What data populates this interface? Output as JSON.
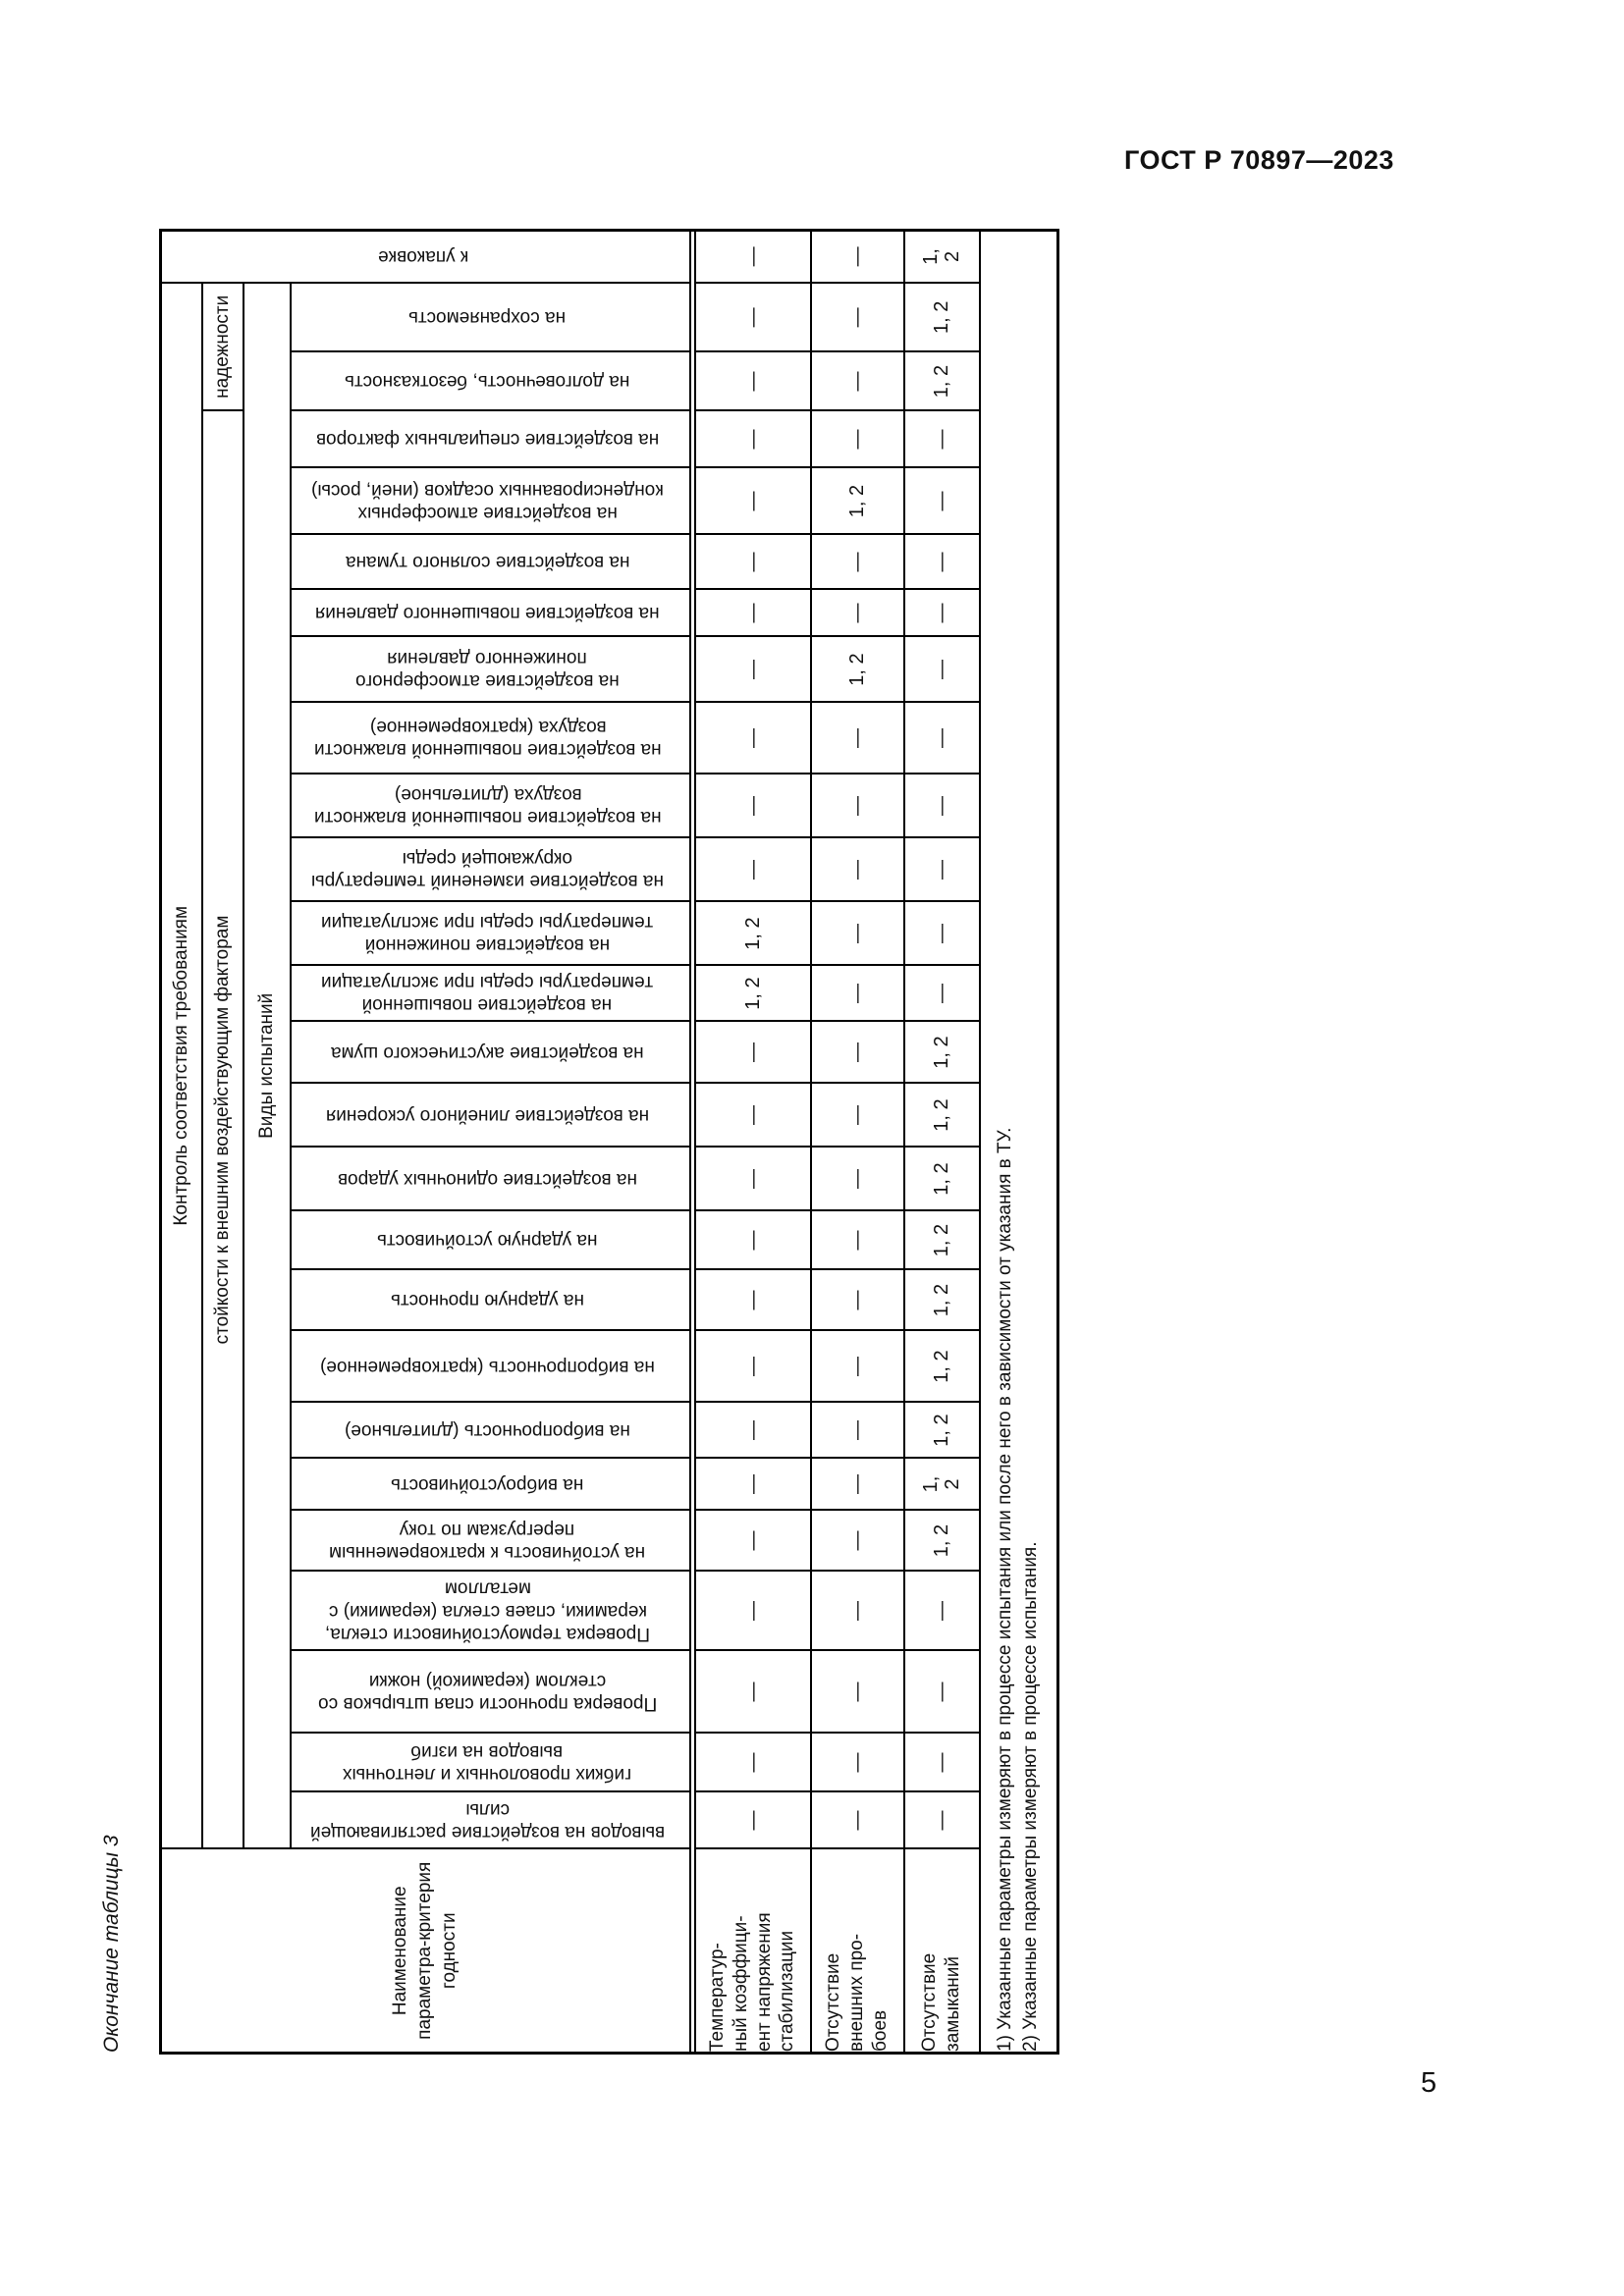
{
  "page": {
    "doc_code": "ГОСТ Р 70897—2023",
    "page_number": "5",
    "table_caption": "Окончание таблицы 3"
  },
  "table": {
    "corner_header": "Наименование\nпараметра-критерия\nгодности",
    "groups": {
      "control": "Контроль соответствия требованиям",
      "stability": "стойкости к внешним воздействующим факторам",
      "reliability": "надежности",
      "test_kinds": "Виды испытаний"
    },
    "packaging_column": {
      "label": "к упаковке",
      "width": 54,
      "values": [
        "—",
        "—",
        "1,\n2"
      ]
    },
    "columns": [
      {
        "label": "выводов на воздействие растягивающей\nсилы",
        "width": 58,
        "values": [
          "—",
          "—",
          "—"
        ]
      },
      {
        "label": "гибких проволочных и ленточных\nвыводов на изгиб",
        "width": 60,
        "values": [
          "—",
          "—",
          "—"
        ]
      },
      {
        "label": "Проверка прочности спая штырьков со\nстеклом (керамикой) ножки",
        "width": 84,
        "values": [
          "—",
          "—",
          "—"
        ]
      },
      {
        "label": "Проверка термоустойчивости стекла,\nкерамики, спаев стекла (керамики) с\nметаллом",
        "width": 81,
        "values": [
          "—",
          "—",
          "—"
        ]
      },
      {
        "label": "на устойчивость к кратковременным\nперегрузкам по току",
        "width": 62,
        "values": [
          "—",
          "—",
          "1, 2"
        ]
      },
      {
        "label": "на виброустойчивость",
        "width": 53,
        "values": [
          "—",
          "—",
          "1,\n2"
        ]
      },
      {
        "label": "на вибропрочность (длительное)",
        "width": 57,
        "values": [
          "—",
          "—",
          "1, 2"
        ]
      },
      {
        "label": "на вибропрочность (кратковременное)",
        "width": 73,
        "values": [
          "—",
          "—",
          "1, 2"
        ]
      },
      {
        "label": "на ударную прочность",
        "width": 62,
        "values": [
          "—",
          "—",
          "1, 2"
        ]
      },
      {
        "label": "на ударную устойчивость",
        "width": 60,
        "values": [
          "—",
          "—",
          "1, 2"
        ]
      },
      {
        "label": "на воздействие одиночных ударов",
        "width": 65,
        "values": [
          "—",
          "—",
          "1, 2"
        ]
      },
      {
        "label": "на воздействие линейного ускорения",
        "width": 65,
        "values": [
          "—",
          "—",
          "1, 2"
        ]
      },
      {
        "label": "на воздействие акустического шума",
        "width": 63,
        "values": [
          "—",
          "—",
          "1, 2"
        ]
      },
      {
        "label": "на воздействие повышенной\nтемпературы среды при эксплуатации",
        "width": 57,
        "values": [
          "1, 2",
          "—",
          "—"
        ]
      },
      {
        "label": "на воздействие пониженной\nтемпературы среды при эксплуатации",
        "width": 65,
        "values": [
          "1, 2",
          "—",
          "—"
        ]
      },
      {
        "label": "на воздействие изменений температуры\nокружающей среды",
        "width": 65,
        "values": [
          "—",
          "—",
          "—"
        ]
      },
      {
        "label": "на воздействие повышенной влажности\nвоздуха (длительное)",
        "width": 65,
        "values": [
          "—",
          "—",
          "—"
        ]
      },
      {
        "label": "на воздействие повышенной влажности\nвоздуха (кратковременное)",
        "width": 73,
        "values": [
          "—",
          "—",
          "—"
        ]
      },
      {
        "label": "на воздействие атмосферного\nпониженного давления",
        "width": 67,
        "values": [
          "—",
          "1, 2",
          "—"
        ]
      },
      {
        "label": "на воздействие повышенного давления",
        "width": 48,
        "values": [
          "—",
          "—",
          "—"
        ]
      },
      {
        "label": "на воздействие соляного тумана",
        "width": 56,
        "values": [
          "—",
          "—",
          "—"
        ]
      },
      {
        "label": "на воздействие атмосферных\nконденсированных осадков (иней, росы)",
        "width": 68,
        "values": [
          "—",
          "1, 2",
          "—"
        ]
      },
      {
        "label": "на воздействие специальных факторов",
        "width": 58,
        "values": [
          "—",
          "—",
          "—"
        ]
      },
      {
        "label": "на долговечность, безотказность",
        "width": 60,
        "values": [
          "—",
          "—",
          "1, 2"
        ]
      },
      {
        "label": "на сохраняемость",
        "width": 70,
        "values": [
          "—",
          "—",
          "1, 2"
        ]
      }
    ],
    "stability_span": 23,
    "reliability_span": 2,
    "param_rows": [
      {
        "label": "Температур-\nный коэффици-\nент напряжения\nстабилизации",
        "height": 118
      },
      {
        "label": "Отсутствие\nвнешних про-\nбоев",
        "height": 95
      },
      {
        "label": "Отсутствие\nзамыканий",
        "height": 77
      }
    ],
    "footnotes": [
      "1) Указанные параметры измеряют в процессе испытания или после него в зависимости от указания в ТУ.",
      "2) Указанные параметры измеряют в процессе испытания."
    ],
    "layout": {
      "label_col_width": 208,
      "head_row_heights": [
        42,
        42,
        48,
        407
      ],
      "footnote_row_height": 80
    }
  }
}
